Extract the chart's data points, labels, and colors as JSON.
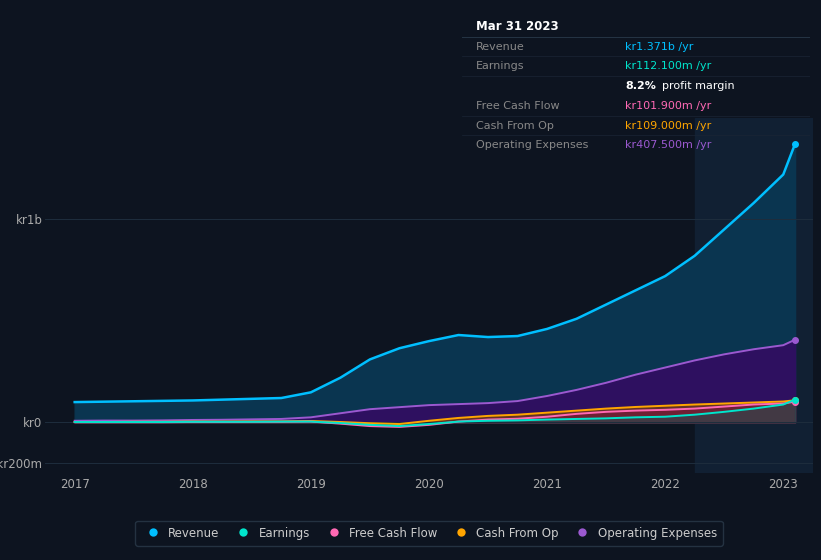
{
  "background_color": "#0d1420",
  "plot_bg_color": "#0d1420",
  "grid_color": "#1e2d3d",
  "highlight_color": "#112033",
  "years": [
    2017.0,
    2017.25,
    2017.5,
    2017.75,
    2018.0,
    2018.25,
    2018.5,
    2018.75,
    2019.0,
    2019.25,
    2019.5,
    2019.75,
    2020.0,
    2020.25,
    2020.5,
    2020.75,
    2021.0,
    2021.25,
    2021.5,
    2021.75,
    2022.0,
    2022.25,
    2022.5,
    2022.75,
    2023.0,
    2023.1
  ],
  "revenue": [
    100,
    102,
    104,
    106,
    108,
    112,
    116,
    120,
    148,
    220,
    310,
    365,
    400,
    430,
    420,
    425,
    460,
    510,
    580,
    650,
    720,
    820,
    950,
    1080,
    1220,
    1371
  ],
  "earnings": [
    2,
    2,
    2,
    2,
    3,
    3,
    3,
    4,
    4,
    -3,
    -12,
    -18,
    -8,
    4,
    8,
    10,
    14,
    17,
    20,
    25,
    28,
    38,
    52,
    68,
    88,
    112
  ],
  "free_cash_flow": [
    1,
    1,
    1,
    1,
    2,
    2,
    3,
    3,
    4,
    -6,
    -18,
    -22,
    -12,
    4,
    14,
    18,
    28,
    42,
    52,
    58,
    62,
    68,
    78,
    88,
    93,
    102
  ],
  "cash_from_op": [
    2,
    2,
    3,
    3,
    4,
    4,
    5,
    5,
    7,
    2,
    -4,
    -8,
    8,
    22,
    32,
    38,
    48,
    58,
    68,
    76,
    82,
    88,
    93,
    98,
    103,
    109
  ],
  "operating_expenses": [
    8,
    9,
    9,
    10,
    12,
    13,
    15,
    17,
    25,
    45,
    65,
    75,
    85,
    90,
    95,
    105,
    130,
    160,
    195,
    235,
    270,
    305,
    335,
    360,
    380,
    407
  ],
  "revenue_color": "#00bfff",
  "earnings_color": "#00e5cc",
  "fcf_color": "#ff69b4",
  "cashop_color": "#ffa500",
  "opex_color": "#9b59d0",
  "revenue_fill": "#0a3550",
  "opex_fill": "#2e1060",
  "highlight_x": 2022.25,
  "ylim": [
    -250,
    1500
  ],
  "xlim": [
    2016.75,
    2023.25
  ],
  "legend_items": [
    {
      "label": "Revenue",
      "color": "#00bfff"
    },
    {
      "label": "Earnings",
      "color": "#00e5cc"
    },
    {
      "label": "Free Cash Flow",
      "color": "#ff69b4"
    },
    {
      "label": "Cash From Op",
      "color": "#ffa500"
    },
    {
      "label": "Operating Expenses",
      "color": "#9b59d0"
    }
  ]
}
